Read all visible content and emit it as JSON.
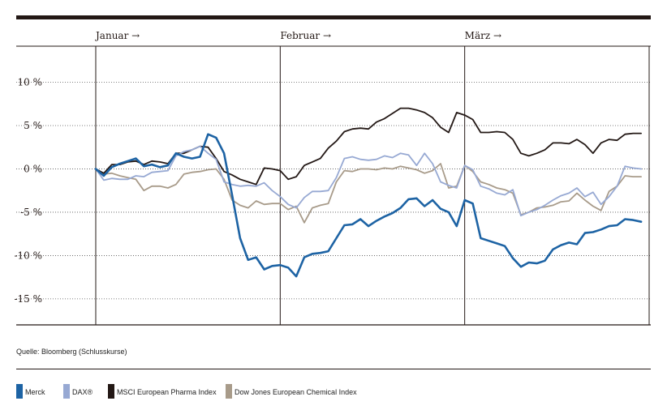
{
  "chart_data": {
    "type": "line",
    "ylim": [
      -18,
      15
    ],
    "y_ticks": [
      {
        "value": 10,
        "label": "10 %"
      },
      {
        "value": 5,
        "label": "5 %"
      },
      {
        "value": 0,
        "label": "0 %"
      },
      {
        "value": -5,
        "label": "-5 %"
      },
      {
        "value": -10,
        "label": "-10 %"
      },
      {
        "value": -15,
        "label": "-15 %"
      }
    ],
    "months": [
      {
        "label": "Januar →",
        "start": 0
      },
      {
        "label": "Februar →",
        "start": 23
      },
      {
        "label": "März →",
        "start": 46
      }
    ],
    "xlim": [
      0,
      69
    ],
    "x": [
      0,
      1,
      2,
      3,
      4,
      5,
      6,
      7,
      8,
      9,
      10,
      11,
      12,
      13,
      14,
      15,
      16,
      17,
      18,
      19,
      20,
      21,
      22,
      23,
      24,
      25,
      26,
      27,
      28,
      29,
      30,
      31,
      32,
      33,
      34,
      35,
      36,
      37,
      38,
      39,
      40,
      41,
      42,
      43,
      44,
      45,
      46,
      47,
      48,
      49,
      50,
      51,
      52,
      53,
      54,
      55,
      56,
      57,
      58,
      59,
      60,
      61,
      62,
      63,
      64,
      65,
      66,
      67,
      68
    ],
    "series": [
      {
        "name": "Merck",
        "color": "#1d63a4",
        "width": 2.6,
        "values": [
          0,
          -0.8,
          0.2,
          0.6,
          0.9,
          1.2,
          0.3,
          0.5,
          0.2,
          0.4,
          1.8,
          1.4,
          1.2,
          1.4,
          4,
          3.6,
          1.8,
          -3,
          -8,
          -10.5,
          -10.2,
          -11.6,
          -11.2,
          -11.1,
          -11.4,
          -12.4,
          -10.2,
          -9.8,
          -9.7,
          -9.5,
          -8,
          -6.5,
          -6.4,
          -5.8,
          -6.6,
          -6,
          -5.5,
          -5.1,
          -4.5,
          -3.5,
          -3.4,
          -4.3,
          -3.6,
          -4.6,
          -5,
          -6.6,
          -3.6,
          -4,
          -8,
          -8.3,
          -8.6,
          -8.9,
          -10.3,
          -11.3,
          -10.8,
          -10.9,
          -10.6,
          -9.3,
          -8.8,
          -8.5,
          -8.7,
          -7.4,
          -7.3,
          -7,
          -6.6,
          -6.5,
          -5.8,
          -5.9,
          -6.1
        ]
      },
      {
        "name": "DAX®",
        "color": "#97a9d3",
        "width": 1.8,
        "values": [
          0,
          -1.3,
          -1.1,
          -1.2,
          -1.2,
          -0.8,
          -0.9,
          -0.4,
          -0.3,
          -0.2,
          1.5,
          2,
          2.2,
          2.6,
          1.8,
          1.1,
          -1.5,
          -1.8,
          -2,
          -1.9,
          -2,
          -1.6,
          -2.5,
          -3.2,
          -4.1,
          -4.5,
          -3.3,
          -2.6,
          -2.6,
          -2.5,
          -1,
          1.2,
          1.4,
          1.1,
          1,
          1.1,
          1.5,
          1.3,
          1.8,
          1.6,
          0.4,
          1.8,
          0.6,
          -1.5,
          -1.9,
          -2.2,
          0.4,
          -0.1,
          -2,
          -2.3,
          -2.8,
          -3,
          -2.4,
          -5.4,
          -5,
          -4.7,
          -4.2,
          -3.6,
          -3.1,
          -2.8,
          -2.2,
          -3.2,
          -2.7,
          -4.1,
          -3.2,
          -2,
          0.3,
          0.1,
          0
        ]
      },
      {
        "name": "MSCI European Pharma Index",
        "color": "#231815",
        "width": 1.8,
        "values": [
          0,
          -0.5,
          0.5,
          0.5,
          0.8,
          0.9,
          0.5,
          0.9,
          0.8,
          0.6,
          1.8,
          1.8,
          2.2,
          2.6,
          2.5,
          1.2,
          -0.3,
          -0.7,
          -1.2,
          -1.5,
          -1.8,
          0.1,
          0,
          -0.2,
          -1.2,
          -0.9,
          0.4,
          0.8,
          1.2,
          2.4,
          3.2,
          4.3,
          4.6,
          4.7,
          4.6,
          5.4,
          5.8,
          6.4,
          7,
          7,
          6.8,
          6.5,
          5.9,
          4.8,
          4.2,
          6.5,
          6.2,
          5.7,
          4.2,
          4.2,
          4.3,
          4.2,
          3.4,
          1.8,
          1.5,
          1.8,
          2.2,
          3,
          3,
          2.9,
          3.4,
          2.8,
          1.8,
          3,
          3.4,
          3.3,
          4,
          4.1,
          4.1
        ]
      },
      {
        "name": "Dow Jones European Chemical Index",
        "color": "#a89b8a",
        "width": 1.8,
        "values": [
          0,
          -0.6,
          -0.5,
          -0.8,
          -1,
          -1.2,
          -2.5,
          -2,
          -2,
          -2.2,
          -1.8,
          -0.6,
          -0.4,
          -0.3,
          -0.1,
          0,
          -1.2,
          -3.6,
          -4.2,
          -4.5,
          -3.7,
          -4.1,
          -4,
          -4,
          -4.7,
          -4.3,
          -6.2,
          -4.5,
          -4.2,
          -4,
          -1.5,
          -0.2,
          -0.3,
          0,
          0,
          -0.1,
          0.1,
          0,
          0.3,
          0.1,
          -0.1,
          -0.5,
          -0.2,
          0.6,
          -2.2,
          -2,
          0.4,
          -0.3,
          -1.5,
          -1.8,
          -2.2,
          -2.4,
          -2.8,
          -5.3,
          -5,
          -4.5,
          -4.4,
          -4.2,
          -3.8,
          -3.7,
          -2.8,
          -3.6,
          -4.3,
          -4.8,
          -2.6,
          -2,
          -0.8,
          -0.9,
          -0.9
        ]
      }
    ]
  },
  "source": "Quelle: Bloomberg (Schlusskurse)",
  "legend": [
    {
      "label": "Merck",
      "color": "#1d63a4"
    },
    {
      "label": "DAX®",
      "color": "#97a9d3"
    },
    {
      "label": "MSCI European Pharma Index",
      "color": "#231815"
    },
    {
      "label": "Dow Jones European Chemical Index",
      "color": "#a89b8a"
    }
  ]
}
